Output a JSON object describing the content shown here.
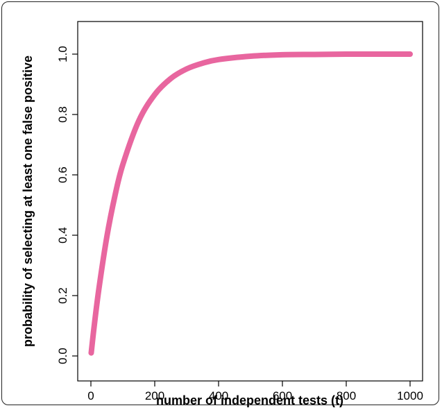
{
  "chart_data": {
    "type": "line",
    "title": "",
    "xlabel": "number of independent tests (t)",
    "ylabel": "probability of selecting at least one false positive",
    "xlim": [
      0,
      1000
    ],
    "ylim": [
      0,
      1
    ],
    "x_ticks": [
      "0",
      "200",
      "400",
      "600",
      "800",
      "1000"
    ],
    "y_ticks": [
      "0.0",
      "0.2",
      "0.4",
      "0.6",
      "0.8",
      "1.0"
    ],
    "grid": false,
    "line_color": "#e8669f",
    "series": [
      {
        "x": [
          1,
          10,
          25,
          50,
          75,
          100,
          150,
          200,
          250,
          300,
          350,
          400,
          500,
          600,
          700,
          800,
          900,
          1000
        ],
        "y": [
          0.01,
          0.096,
          0.222,
          0.395,
          0.529,
          0.634,
          0.779,
          0.866,
          0.919,
          0.951,
          0.97,
          0.982,
          0.993,
          0.998,
          0.999,
          1.0,
          1.0,
          1.0
        ]
      }
    ]
  }
}
